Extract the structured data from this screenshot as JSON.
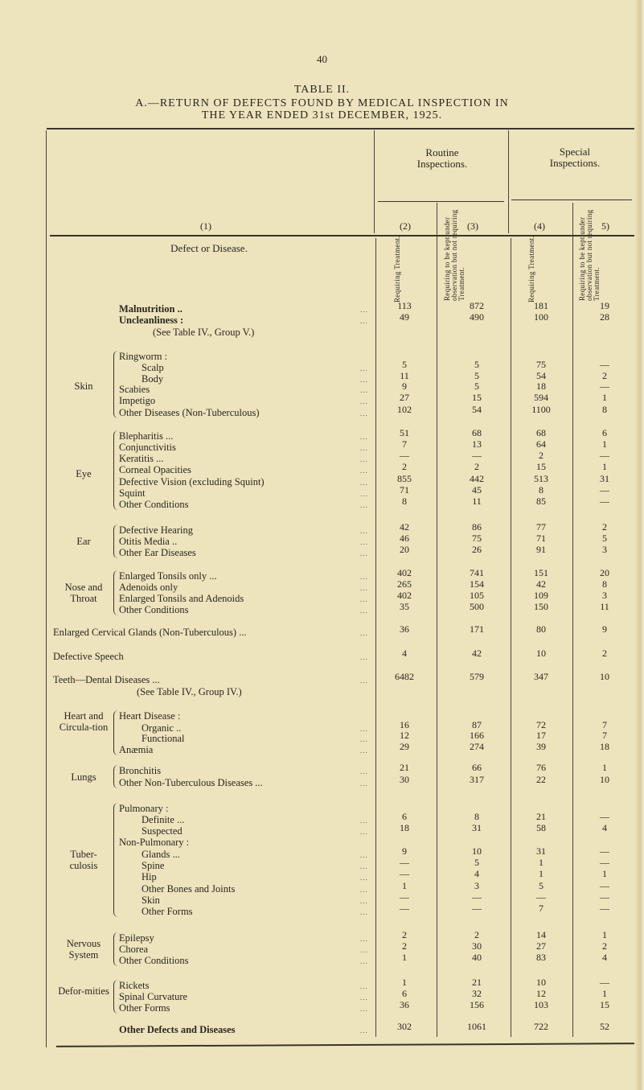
{
  "page_number": "40",
  "title": "TABLE II.",
  "subtitle_line1": "A.—RETURN OF DEFECTS FOUND BY MEDICAL INSPECTION IN",
  "subtitle_line2": "THE YEAR ENDED 31st DECEMBER, 1925.",
  "header": {
    "defect_col": "Defect or Disease.",
    "routine": "Routine Inspections.",
    "special": "Special Inspections.",
    "requiring_treatment": "Requiring Treatment.",
    "observation": "Requiring to be kept under observation but not requiring Treatment.",
    "col_numbers": [
      "(1)",
      "(2)",
      "(3)",
      "(4)",
      "5)"
    ]
  },
  "groups": [
    {
      "label": "Skin"
    },
    {
      "label": "Eye"
    },
    {
      "label": "Ear"
    },
    {
      "label": "Nose and Throat"
    },
    {
      "label": "Heart and Circula-tion"
    },
    {
      "label": "Lungs"
    },
    {
      "label": "Tuber-culosis"
    },
    {
      "label": "Nervous System"
    },
    {
      "label": "Defor-mities"
    }
  ],
  "rows": [
    {
      "label": "Malnutrition ..",
      "bold": true,
      "values": [
        "113",
        "872",
        "181",
        "19"
      ]
    },
    {
      "label": "Uncleanliness :",
      "bold": true,
      "values": [
        "49",
        "490",
        "100",
        "28"
      ]
    },
    {
      "label": "(See Table IV., Group V.)",
      "note": true
    },
    {
      "label": "Ringworm :"
    },
    {
      "label": "Scalp",
      "indent": true,
      "values": [
        "5",
        "5",
        "75",
        "—"
      ]
    },
    {
      "label": "Body",
      "indent": true,
      "values": [
        "11",
        "5",
        "54",
        "2"
      ]
    },
    {
      "label": "Scabies",
      "values": [
        "9",
        "5",
        "18",
        "—"
      ]
    },
    {
      "label": "Impetigo",
      "values": [
        "27",
        "15",
        "594",
        "1"
      ]
    },
    {
      "label": "Other Diseases (Non-Tuberculous)",
      "values": [
        "102",
        "54",
        "1100",
        "8"
      ]
    },
    {
      "label": "Blepharitis ...",
      "values": [
        "51",
        "68",
        "68",
        "6"
      ]
    },
    {
      "label": "Conjunctivitis",
      "values": [
        "7",
        "13",
        "64",
        "1"
      ]
    },
    {
      "label": "Keratitis ...",
      "values": [
        "—",
        "—",
        "2",
        "—"
      ]
    },
    {
      "label": "Corneal Opacities",
      "values": [
        "2",
        "2",
        "15",
        "1"
      ]
    },
    {
      "label": "Defective Vision (excluding Squint)",
      "values": [
        "855",
        "442",
        "513",
        "31"
      ]
    },
    {
      "label": "Squint",
      "values": [
        "71",
        "45",
        "8",
        "—"
      ]
    },
    {
      "label": "Other Conditions",
      "values": [
        "8",
        "11",
        "85",
        "—"
      ]
    },
    {
      "label": "Defective Hearing",
      "values": [
        "42",
        "86",
        "77",
        "2"
      ]
    },
    {
      "label": "Otitis Media ..",
      "values": [
        "46",
        "75",
        "71",
        "5"
      ]
    },
    {
      "label": "Other Ear Diseases",
      "values": [
        "20",
        "26",
        "91",
        "3"
      ]
    },
    {
      "label": "Enlarged Tonsils only ...",
      "values": [
        "402",
        "741",
        "151",
        "20"
      ]
    },
    {
      "label": "Adenoids only",
      "values": [
        "265",
        "154",
        "42",
        "8"
      ]
    },
    {
      "label": "Enlarged Tonsils and Adenoids",
      "values": [
        "402",
        "105",
        "109",
        "3"
      ]
    },
    {
      "label": "Other Conditions",
      "values": [
        "35",
        "500",
        "150",
        "11"
      ]
    },
    {
      "label": "Enlarged Cervical Glands (Non-Tuberculous) ...",
      "values": [
        "36",
        "171",
        "80",
        "9"
      ]
    },
    {
      "label": "Defective Speech",
      "values": [
        "4",
        "42",
        "10",
        "2"
      ]
    },
    {
      "label": "Teeth—Dental Diseases ...",
      "values": [
        "6482",
        "579",
        "347",
        "10"
      ]
    },
    {
      "label": "(See Table IV., Group IV.)",
      "note": true
    },
    {
      "label": "Heart Disease :"
    },
    {
      "label": "Organic ..",
      "indent": true,
      "values": [
        "16",
        "87",
        "72",
        "7"
      ]
    },
    {
      "label": "Functional",
      "indent": true,
      "values": [
        "12",
        "166",
        "17",
        "7"
      ]
    },
    {
      "label": "Anæmia",
      "values": [
        "29",
        "274",
        "39",
        "18"
      ]
    },
    {
      "label": "Bronchitis",
      "values": [
        "21",
        "66",
        "76",
        "1"
      ]
    },
    {
      "label": "Other Non-Tuberculous Diseases ...",
      "values": [
        "30",
        "317",
        "22",
        "10"
      ]
    },
    {
      "label": "Pulmonary :"
    },
    {
      "label": "Definite ...",
      "indent": true,
      "values": [
        "6",
        "8",
        "21",
        "—"
      ]
    },
    {
      "label": "Suspected",
      "indent": true,
      "values": [
        "18",
        "31",
        "58",
        "4"
      ]
    },
    {
      "label": "Non-Pulmonary :"
    },
    {
      "label": "Glands ...",
      "indent": true,
      "values": [
        "9",
        "10",
        "31",
        "—"
      ]
    },
    {
      "label": "Spine",
      "indent": true,
      "values": [
        "—",
        "5",
        "1",
        "—"
      ]
    },
    {
      "label": "Hip",
      "indent": true,
      "values": [
        "—",
        "4",
        "1",
        "1"
      ]
    },
    {
      "label": "Other Bones and Joints",
      "indent": true,
      "values": [
        "1",
        "3",
        "5",
        "—"
      ]
    },
    {
      "label": "Skin",
      "indent": true,
      "values": [
        "—",
        "—",
        "—",
        "—"
      ]
    },
    {
      "label": "Other Forms",
      "indent": true,
      "values": [
        "—",
        "—",
        "7",
        "—"
      ]
    },
    {
      "label": "Epilepsy",
      "values": [
        "2",
        "2",
        "14",
        "1"
      ]
    },
    {
      "label": "Chorea",
      "values": [
        "2",
        "30",
        "27",
        "2"
      ]
    },
    {
      "label": "Other Conditions",
      "values": [
        "1",
        "40",
        "83",
        "4"
      ]
    },
    {
      "label": "Rickets",
      "values": [
        "1",
        "21",
        "10",
        "—"
      ]
    },
    {
      "label": "Spinal Curvature",
      "values": [
        "6",
        "32",
        "12",
        "1"
      ]
    },
    {
      "label": "Other Forms",
      "values": [
        "36",
        "156",
        "103",
        "15"
      ]
    },
    {
      "label": "Other Defects and Diseases",
      "bold": true,
      "values": [
        "302",
        "1061",
        "722",
        "52"
      ]
    }
  ]
}
